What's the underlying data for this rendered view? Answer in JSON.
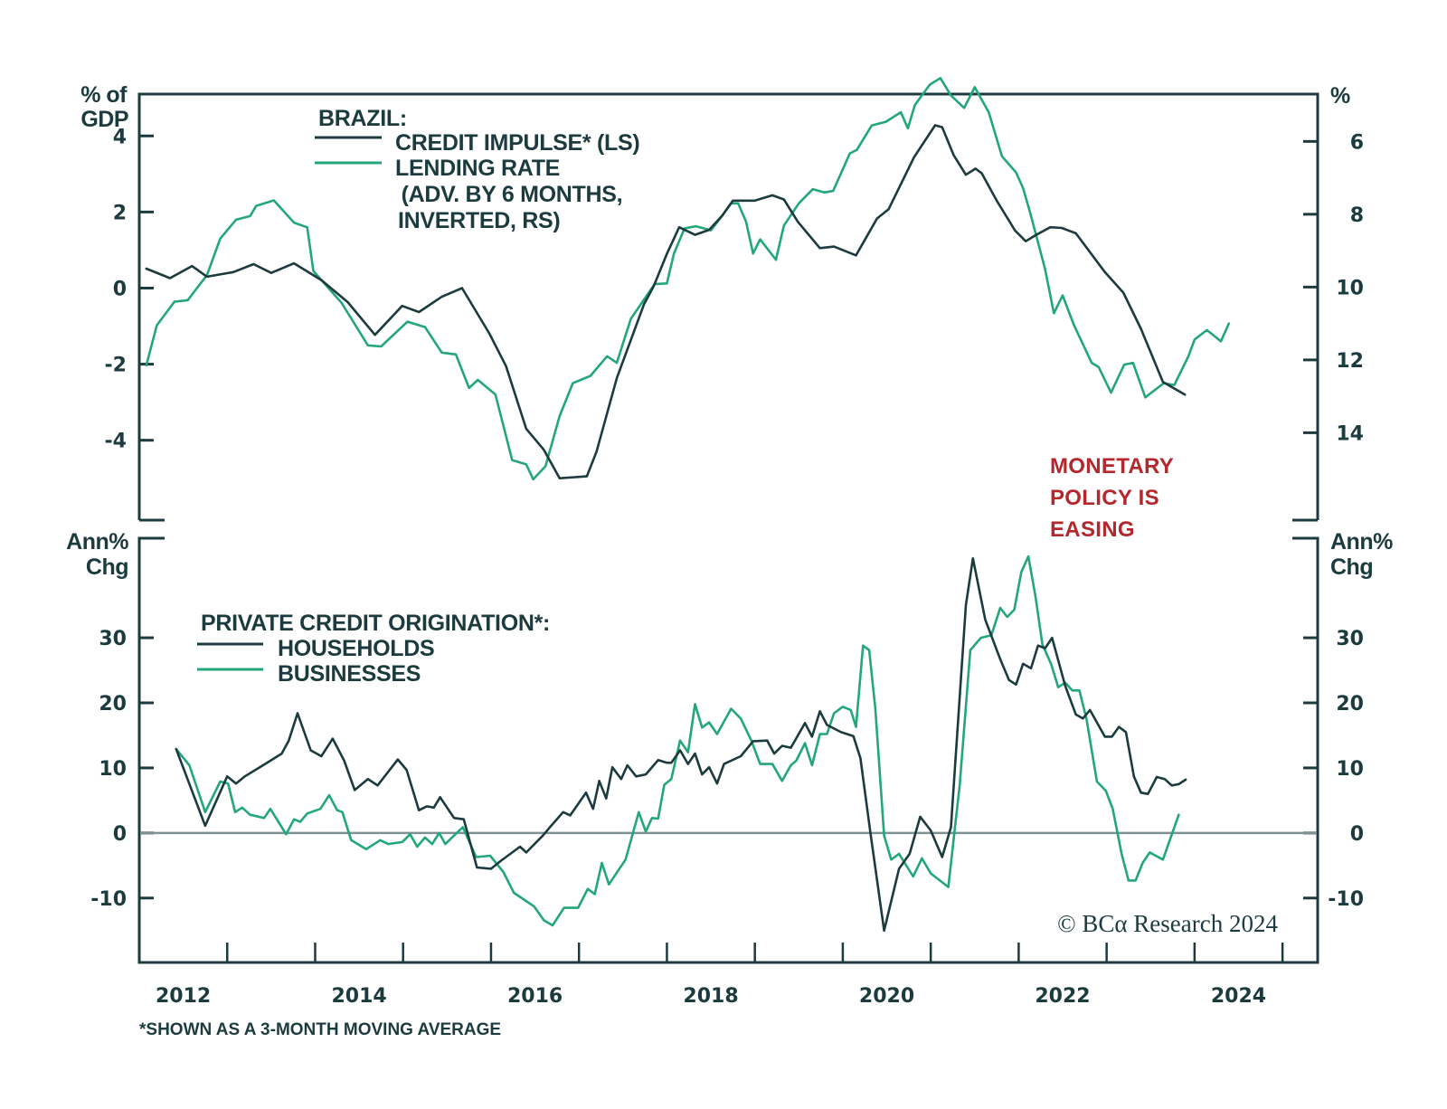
{
  "colors": {
    "axis": "#1c3b3e",
    "dark_series": "#1c3b3e",
    "green_series": "#23a77a",
    "zero_line": "#7f9293",
    "annotation": "#b4272d"
  },
  "chart_data": [
    {
      "type": "line",
      "panel": "top",
      "title": "BRAZIL:",
      "left_axis_label": [
        "% of",
        "GDP"
      ],
      "right_axis_label": [
        "%"
      ],
      "left_ylim": [
        -6.1,
        5.1
      ],
      "left_ticks": [
        4,
        2,
        0,
        -2,
        -4
      ],
      "left_tick_labels": [
        "4",
        "2",
        "0",
        "-2",
        "-4"
      ],
      "right_ylim": [
        4.7,
        16.4
      ],
      "right_inverted": true,
      "right_ticks": [
        6,
        8,
        10,
        12,
        14
      ],
      "right_tick_labels": [
        "6",
        "8",
        "10",
        "12",
        "14"
      ],
      "xlim": [
        2012,
        2025.4
      ],
      "grid": false,
      "legend_position": "top-left",
      "annotation": [
        "MONETARY",
        "POLICY IS",
        "EASING"
      ],
      "series": [
        {
          "name": "CREDIT IMPULSE* (LS)",
          "axis": "left",
          "color_key": "dark_series",
          "x": [
            2012.08,
            2012.35,
            2012.6,
            2012.77,
            2013.07,
            2013.3,
            2013.5,
            2013.76,
            2014.07,
            2014.37,
            2014.68,
            2014.99,
            2015.18,
            2015.44,
            2015.67,
            2015.98,
            2016.17,
            2016.4,
            2016.6,
            2016.78,
            2017.09,
            2017.2,
            2017.43,
            2017.74,
            2017.85,
            2018.0,
            2018.14,
            2018.32,
            2018.48,
            2018.63,
            2018.75,
            2019.0,
            2019.2,
            2019.33,
            2019.49,
            2019.74,
            2019.9,
            2020.15,
            2020.39,
            2020.52,
            2020.81,
            2021.05,
            2021.13,
            2021.26,
            2021.4,
            2021.51,
            2021.58,
            2021.75,
            2021.96,
            2022.08,
            2022.2,
            2022.36,
            2022.49,
            2022.65,
            2022.98,
            2023.19,
            2023.39,
            2023.64,
            2023.89
          ],
          "y": [
            0.51,
            0.26,
            0.58,
            0.3,
            0.42,
            0.63,
            0.4,
            0.65,
            0.21,
            -0.37,
            -1.23,
            -0.47,
            -0.63,
            -0.23,
            0.0,
            -1.19,
            -2.05,
            -3.7,
            -4.25,
            -5.0,
            -4.95,
            -4.3,
            -2.37,
            -0.42,
            0.05,
            0.9,
            1.6,
            1.4,
            1.53,
            1.91,
            2.3,
            2.3,
            2.44,
            2.33,
            1.74,
            1.05,
            1.09,
            0.86,
            1.83,
            2.07,
            3.44,
            4.28,
            4.23,
            3.5,
            2.98,
            3.14,
            3.02,
            2.3,
            1.51,
            1.23,
            1.4,
            1.6,
            1.58,
            1.44,
            0.42,
            -0.12,
            -1.07,
            -2.47,
            -2.8
          ]
        },
        {
          "name": "LENDING RATE (ADV. BY 6 MONTHS, INVERTED, RS)",
          "legend_lines": [
            "LENDING RATE",
            " (ADV. BY 6 MONTHS,",
            "INVERTED, RS)"
          ],
          "axis": "right",
          "color_key": "green_series",
          "x": [
            2012.08,
            2012.2,
            2012.4,
            2012.55,
            2012.77,
            2012.92,
            2013.1,
            2013.26,
            2013.33,
            2013.53,
            2013.76,
            2013.91,
            2013.98,
            2014.3,
            2014.6,
            2014.75,
            2015.05,
            2015.25,
            2015.44,
            2015.6,
            2015.75,
            2015.85,
            2016.05,
            2016.24,
            2016.4,
            2016.48,
            2016.62,
            2016.78,
            2016.93,
            2017.13,
            2017.32,
            2017.43,
            2017.59,
            2017.86,
            2018.0,
            2018.08,
            2018.2,
            2018.33,
            2018.5,
            2018.6,
            2018.73,
            2018.81,
            2018.9,
            2018.98,
            2019.06,
            2019.24,
            2019.33,
            2019.5,
            2019.66,
            2019.79,
            2019.89,
            2020.08,
            2020.16,
            2020.33,
            2020.49,
            2020.66,
            2020.74,
            2020.82,
            2020.99,
            2021.11,
            2021.23,
            2021.38,
            2021.5,
            2021.66,
            2021.81,
            2021.97,
            2022.05,
            2022.13,
            2022.3,
            2022.4,
            2022.5,
            2022.63,
            2022.83,
            2022.91,
            2023.05,
            2023.2,
            2023.3,
            2023.44,
            2023.65,
            2023.77,
            2023.93,
            2024.0,
            2024.14,
            2024.3,
            2024.39
          ],
          "y": [
            12.15,
            11.05,
            10.4,
            10.36,
            9.67,
            8.67,
            8.15,
            8.05,
            7.77,
            7.62,
            8.23,
            8.36,
            9.56,
            10.43,
            11.6,
            11.63,
            10.95,
            11.1,
            11.8,
            11.85,
            12.77,
            12.55,
            12.95,
            14.75,
            14.87,
            15.28,
            14.92,
            13.54,
            12.64,
            12.44,
            11.9,
            12.08,
            10.87,
            9.92,
            9.9,
            9.08,
            8.39,
            8.33,
            8.44,
            8.13,
            7.7,
            7.7,
            8.2,
            9.08,
            8.69,
            9.25,
            8.31,
            7.7,
            7.31,
            7.4,
            7.36,
            6.33,
            6.23,
            5.56,
            5.46,
            5.2,
            5.64,
            5.0,
            4.44,
            4.26,
            4.74,
            5.08,
            4.51,
            5.2,
            6.41,
            6.85,
            7.28,
            7.95,
            9.51,
            10.72,
            10.23,
            11.05,
            12.08,
            12.2,
            12.9,
            12.13,
            12.08,
            13.03,
            12.64,
            12.69,
            11.9,
            11.44,
            11.18,
            11.49,
            11.0
          ]
        }
      ]
    },
    {
      "type": "line",
      "panel": "bottom",
      "title": "PRIVATE CREDIT ORIGINATION*:",
      "left_axis_label": [
        "Ann%",
        "Chg"
      ],
      "right_axis_label": [
        "Ann%",
        "Chg"
      ],
      "ylim": [
        -19.9,
        45.3
      ],
      "ticks": [
        30,
        20,
        10,
        0,
        -10
      ],
      "tick_labels": [
        "30",
        "20",
        "10",
        "0",
        "-10"
      ],
      "xlim": [
        2012,
        2025.4
      ],
      "x_tick_years": [
        2013,
        2014,
        2015,
        2016,
        2017,
        2018,
        2019,
        2020,
        2021,
        2022,
        2023,
        2024,
        2025
      ],
      "x_labels": [
        "2012",
        "2014",
        "2016",
        "2018",
        "2020",
        "2022",
        "2024"
      ],
      "zero_line": true,
      "grid": false,
      "legend_position": "top-left",
      "series": [
        {
          "name": "HOUSEHOLDS",
          "color_key": "dark_series",
          "x": [
            2012.42,
            2012.75,
            2013.0,
            2013.1,
            2013.2,
            2013.43,
            2013.62,
            2013.7,
            2013.8,
            2013.95,
            2014.07,
            2014.2,
            2014.33,
            2014.45,
            2014.6,
            2014.71,
            2014.94,
            2015.04,
            2015.18,
            2015.27,
            2015.35,
            2015.42,
            2015.58,
            2015.69,
            2015.84,
            2016.0,
            2016.1,
            2016.33,
            2016.4,
            2016.59,
            2016.67,
            2016.82,
            2016.9,
            2017.08,
            2017.16,
            2017.23,
            2017.31,
            2017.38,
            2017.48,
            2017.55,
            2017.65,
            2017.76,
            2017.9,
            2018.0,
            2018.05,
            2018.15,
            2018.24,
            2018.32,
            2018.4,
            2018.48,
            2018.57,
            2018.65,
            2018.84,
            2018.98,
            2019.14,
            2019.22,
            2019.31,
            2019.41,
            2019.57,
            2019.65,
            2019.74,
            2019.82,
            2019.98,
            2020.12,
            2020.2,
            2020.31,
            2020.47,
            2020.64,
            2020.76,
            2020.88,
            2021.0,
            2021.13,
            2021.23,
            2021.4,
            2021.48,
            2021.62,
            2021.79,
            2021.89,
            2021.97,
            2022.05,
            2022.14,
            2022.22,
            2022.3,
            2022.38,
            2022.53,
            2022.65,
            2022.73,
            2022.81,
            2022.98,
            2023.06,
            2023.14,
            2023.22,
            2023.31,
            2023.39,
            2023.47,
            2023.57,
            2023.66,
            2023.74,
            2023.82,
            2023.9
          ],
          "y": [
            12.9,
            1.1,
            8.7,
            7.6,
            8.7,
            10.6,
            12.2,
            14.2,
            18.4,
            12.7,
            11.8,
            14.5,
            11.1,
            6.6,
            8.3,
            7.3,
            11.3,
            9.7,
            3.5,
            4.1,
            3.9,
            5.5,
            2.3,
            2.1,
            -5.3,
            -5.5,
            -4.4,
            -2.1,
            -3.0,
            -0.4,
            0.9,
            3.2,
            2.7,
            6.2,
            3.7,
            8.0,
            5.3,
            10.1,
            8.3,
            10.4,
            8.7,
            9.0,
            11.2,
            10.8,
            10.8,
            12.7,
            10.6,
            12.2,
            9.0,
            10.1,
            7.6,
            10.6,
            11.8,
            14.1,
            14.2,
            12.2,
            13.4,
            13.1,
            16.9,
            14.8,
            18.7,
            16.6,
            15.5,
            14.9,
            11.5,
            0.4,
            -15.0,
            -5.5,
            -3.2,
            2.5,
            0.4,
            -3.7,
            0.9,
            35.0,
            42.2,
            32.8,
            26.7,
            23.5,
            22.8,
            26.0,
            25.3,
            28.8,
            28.4,
            30.0,
            22.6,
            18.2,
            17.6,
            18.9,
            14.8,
            14.8,
            16.3,
            15.5,
            8.7,
            6.2,
            6.0,
            8.6,
            8.3,
            7.3,
            7.5,
            8.2
          ]
        },
        {
          "name": "BUSINESSES",
          "color_key": "green_series",
          "x": [
            2012.42,
            2012.57,
            2012.75,
            2012.92,
            2013.01,
            2013.09,
            2013.17,
            2013.26,
            2013.42,
            2013.49,
            2013.67,
            2013.76,
            2013.83,
            2013.91,
            2014.06,
            2014.16,
            2014.25,
            2014.31,
            2014.41,
            2014.58,
            2014.74,
            2014.83,
            2014.99,
            2015.08,
            2015.16,
            2015.25,
            2015.33,
            2015.41,
            2015.48,
            2015.68,
            2015.83,
            2015.99,
            2016.14,
            2016.26,
            2016.49,
            2016.6,
            2016.7,
            2016.83,
            2016.99,
            2017.1,
            2017.18,
            2017.26,
            2017.34,
            2017.53,
            2017.68,
            2017.76,
            2017.83,
            2017.9,
            2017.97,
            2018.05,
            2018.15,
            2018.24,
            2018.32,
            2018.4,
            2018.48,
            2018.57,
            2018.73,
            2018.84,
            2018.96,
            2019.06,
            2019.2,
            2019.31,
            2019.41,
            2019.47,
            2019.57,
            2019.65,
            2019.74,
            2019.82,
            2019.9,
            2020.0,
            2020.09,
            2020.15,
            2020.23,
            2020.3,
            2020.37,
            2020.47,
            2020.55,
            2020.64,
            2020.8,
            2020.9,
            2021.0,
            2021.2,
            2021.33,
            2021.45,
            2021.57,
            2021.69,
            2021.79,
            2021.87,
            2021.95,
            2022.03,
            2022.11,
            2022.19,
            2022.27,
            2022.37,
            2022.45,
            2022.53,
            2022.61,
            2022.69,
            2022.77,
            2022.89,
            2022.99,
            2023.07,
            2023.17,
            2023.25,
            2023.33,
            2023.41,
            2023.49,
            2023.64,
            2023.82
          ],
          "y": [
            12.9,
            10.4,
            3.2,
            7.9,
            7.6,
            3.2,
            3.9,
            2.8,
            2.3,
            3.7,
            -0.2,
            2.1,
            1.7,
            3.0,
            3.7,
            5.8,
            3.5,
            3.2,
            -1.1,
            -2.5,
            -1.1,
            -1.7,
            -1.4,
            -0.2,
            -2.1,
            -0.7,
            -1.7,
            0.0,
            -1.7,
            0.9,
            -3.7,
            -3.5,
            -6.0,
            -9.2,
            -11.3,
            -13.4,
            -14.2,
            -11.5,
            -11.5,
            -8.6,
            -9.4,
            -4.6,
            -7.9,
            -4.1,
            3.2,
            0.2,
            2.3,
            2.2,
            7.4,
            8.3,
            14.2,
            12.4,
            19.8,
            16.2,
            17.0,
            15.2,
            19.1,
            17.6,
            14.2,
            10.6,
            10.6,
            8.0,
            10.4,
            11.1,
            13.8,
            10.4,
            15.2,
            15.2,
            18.4,
            19.4,
            18.9,
            16.3,
            28.8,
            28.1,
            19.1,
            -0.4,
            -4.1,
            -3.2,
            -6.7,
            -3.9,
            -6.2,
            -8.3,
            7.4,
            28.1,
            30.0,
            30.4,
            34.6,
            33.2,
            34.3,
            40.1,
            42.5,
            36.4,
            29.0,
            25.9,
            22.4,
            23.1,
            21.9,
            21.9,
            17.6,
            7.9,
            6.5,
            3.7,
            -3.2,
            -7.3,
            -7.3,
            -4.6,
            -3.0,
            -4.1,
            2.8
          ]
        }
      ]
    }
  ],
  "labels": {
    "top_left_unit": [
      "% of",
      "GDP"
    ],
    "top_right_unit": "%",
    "bottom_left_unit": [
      "Ann%",
      "Chg"
    ],
    "bottom_right_unit": [
      "Ann%",
      "Chg"
    ],
    "top_legend_title": "BRAZIL:",
    "top_legend_1": "CREDIT IMPULSE* (LS)",
    "top_legend_2": [
      "LENDING RATE",
      " (ADV. BY 6 MONTHS,",
      "INVERTED, RS)"
    ],
    "bottom_legend_title": "PRIVATE CREDIT ORIGINATION*:",
    "bottom_legend_1": "HOUSEHOLDS",
    "bottom_legend_2": "BUSINESSES",
    "annotation": [
      "MONETARY",
      "POLICY IS",
      "EASING"
    ],
    "copyright": "© BCα Research 2024",
    "footnote": "*SHOWN AS A 3-MONTH MOVING AVERAGE"
  }
}
